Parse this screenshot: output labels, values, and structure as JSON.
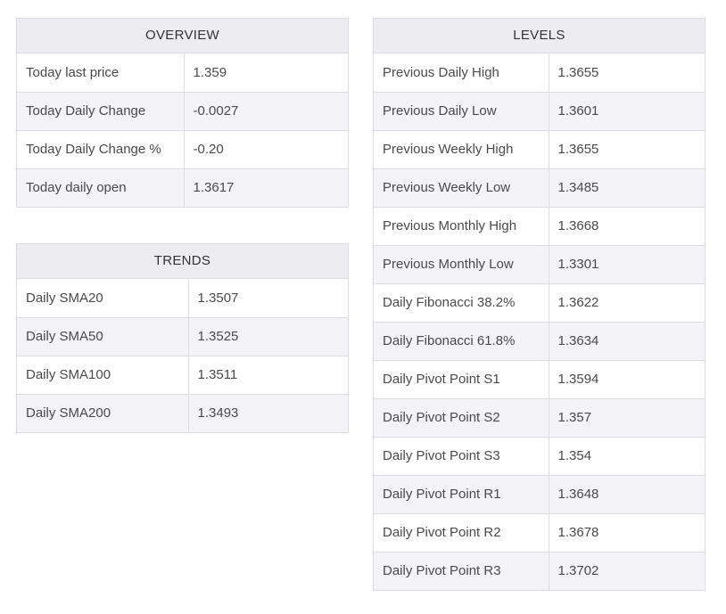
{
  "overview": {
    "title": "OVERVIEW",
    "rows": [
      {
        "label": "Today last price",
        "value": "1.359"
      },
      {
        "label": "Today Daily Change",
        "value": "-0.0027"
      },
      {
        "label": "Today Daily Change %",
        "value": "-0.20"
      },
      {
        "label": "Today daily open",
        "value": "1.3617"
      }
    ]
  },
  "trends": {
    "title": "TRENDS",
    "rows": [
      {
        "label": "Daily SMA20",
        "value": "1.3507"
      },
      {
        "label": "Daily SMA50",
        "value": "1.3525"
      },
      {
        "label": "Daily SMA100",
        "value": "1.3511"
      },
      {
        "label": "Daily SMA200",
        "value": "1.3493"
      }
    ]
  },
  "levels": {
    "title": "LEVELS",
    "rows": [
      {
        "label": "Previous Daily High",
        "value": "1.3655"
      },
      {
        "label": "Previous Daily Low",
        "value": "1.3601"
      },
      {
        "label": "Previous Weekly High",
        "value": "1.3655"
      },
      {
        "label": "Previous Weekly Low",
        "value": "1.3485"
      },
      {
        "label": "Previous Monthly High",
        "value": "1.3668"
      },
      {
        "label": "Previous Monthly Low",
        "value": "1.3301"
      },
      {
        "label": "Daily Fibonacci 38.2%",
        "value": "1.3622"
      },
      {
        "label": "Daily Fibonacci 61.8%",
        "value": "1.3634"
      },
      {
        "label": "Daily Pivot Point S1",
        "value": "1.3594"
      },
      {
        "label": "Daily Pivot Point S2",
        "value": "1.357"
      },
      {
        "label": "Daily Pivot Point S3",
        "value": "1.354"
      },
      {
        "label": "Daily Pivot Point R1",
        "value": "1.3648"
      },
      {
        "label": "Daily Pivot Point R2",
        "value": "1.3678"
      },
      {
        "label": "Daily Pivot Point R3",
        "value": "1.3702"
      }
    ]
  }
}
